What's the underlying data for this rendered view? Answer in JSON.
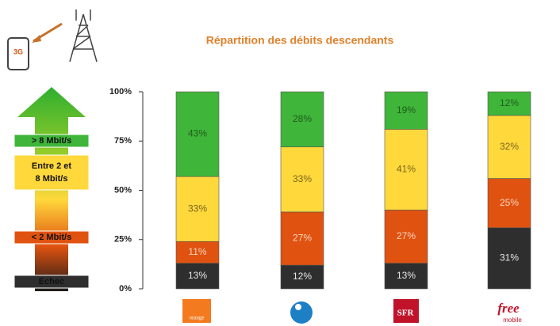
{
  "phone_label": "3G",
  "chart_data": {
    "type": "stacked_bar",
    "title": "Répartition des débits descendants",
    "categories": [
      "orange",
      null,
      "SFR",
      "free"
    ],
    "category_sublabels": [
      null,
      null,
      null,
      "mobile"
    ],
    "ylim": [
      0,
      100
    ],
    "yticks": [
      {
        "value": 0,
        "label": "0%"
      },
      {
        "value": 25,
        "label": "25%"
      },
      {
        "value": 50,
        "label": "50%"
      },
      {
        "value": 75,
        "label": "75%"
      },
      {
        "value": 100,
        "label": "100%"
      }
    ],
    "series": [
      {
        "name": "Echec",
        "color": "#2e2e2e",
        "label_color": "#e8e8e8",
        "values": [
          13,
          12,
          13,
          31
        ],
        "value_labels": [
          "13%",
          "12%",
          "13%",
          "31%"
        ]
      },
      {
        "name": "< 2 Mbit/s",
        "color": "#e0520f",
        "label_color": "#f6d6c0",
        "values": [
          11,
          27,
          27,
          25
        ],
        "value_labels": [
          "11%",
          "27%",
          "27%",
          "25%"
        ]
      },
      {
        "name": "Entre 2 et 8 Mbit/s",
        "color": "#ffd83b",
        "label_color": "#7a6420",
        "values": [
          33,
          33,
          41,
          32
        ],
        "value_labels": [
          "33%",
          "33%",
          "41%",
          "32%"
        ]
      },
      {
        "name": "> 8 Mbit/s",
        "color": "#3fb53a",
        "label_color": "#1f5e1c",
        "values": [
          43,
          28,
          19,
          12
        ],
        "value_labels": [
          "43%",
          "28%",
          "19%",
          "12%"
        ]
      }
    ]
  }
}
